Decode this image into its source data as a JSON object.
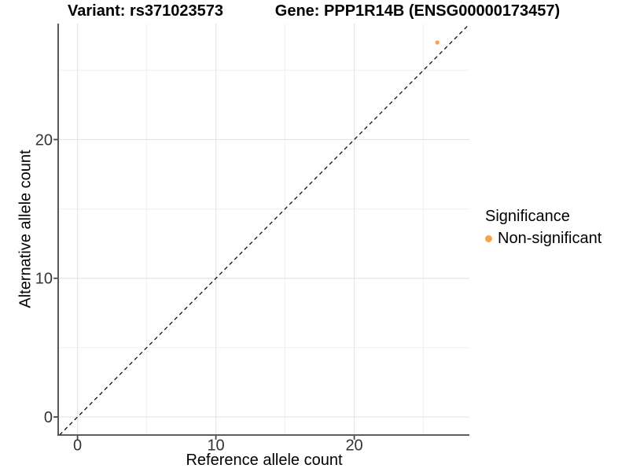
{
  "chart_data": {
    "type": "scatter",
    "titles": {
      "left": "Variant: rs371023573",
      "right": "Gene: PPP1R14B (ENSG00000173457)"
    },
    "xlabel": "Reference allele count",
    "ylabel": "Alternative allele count",
    "x_ticks": [
      0,
      10,
      20
    ],
    "x_minor_ticks": [
      5,
      15,
      25
    ],
    "y_ticks": [
      0,
      10,
      20
    ],
    "y_minor_ticks": [
      5,
      15,
      25
    ],
    "xlim": [
      -1.34,
      28.32
    ],
    "ylim": [
      -1.3,
      28.36
    ],
    "grid": "major+minor",
    "reference_line": {
      "type": "identity",
      "linetype": "dashed",
      "color": "#111111"
    },
    "series": [
      {
        "name": "Non-significant",
        "color": "#F9A242",
        "points": [
          {
            "x": 26,
            "y": 27
          }
        ]
      }
    ],
    "legend": {
      "title": "Significance",
      "position": "right",
      "items": [
        {
          "label": "Non-significant",
          "color": "#F9A242"
        }
      ]
    }
  }
}
